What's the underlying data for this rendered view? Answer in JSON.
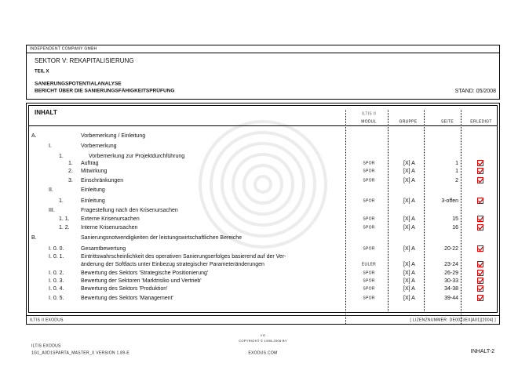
{
  "header": {
    "company": "INDEPENDENT COMPANY GMBH",
    "sektor": "SEKTOR V: REKAPITALISIERUNG",
    "teil": "TEIL X",
    "title": "SANIERUNGSPOTENTIALANALYSE",
    "subtitle": "BERICHT ÜBER DIE SANIERUNGSFÄHIGKEITSPRÜFUNG",
    "stand": "STAND: 05/2008"
  },
  "table": {
    "title": "INHALT",
    "brand": "ILTIS II",
    "columns": [
      "MODUL",
      "GRUPPE",
      "SEITE",
      "ERLEDIGT"
    ],
    "rows": [
      {
        "num": "A.",
        "text": [
          "Vorbemerkung / Einleitung"
        ]
      },
      {
        "num": "I.",
        "text": [
          "Vorbemerkung"
        ]
      },
      {
        "num": "1.",
        "text": [
          "Vorbemerkung zur Projektdurchführung"
        ]
      },
      {
        "num": "1.",
        "text": [
          "Auftrag"
        ],
        "modul": "SPOR",
        "gruppe": "[X] A",
        "seite": "1"
      },
      {
        "num": "2.",
        "text": [
          "Mitwirkung"
        ],
        "modul": "SPOR",
        "gruppe": "[X] A",
        "seite": "1"
      },
      {
        "num": "3.",
        "text": [
          "Einschränkungen"
        ],
        "modul": "SPOR",
        "gruppe": "[X] A",
        "seite": "2"
      },
      {
        "num": "II.",
        "text": [
          "Einleitung"
        ]
      },
      {
        "num": "1.",
        "text": [
          "Einleitung"
        ],
        "modul": "SPOR",
        "gruppe": "[X] A",
        "seite": "3-offen"
      },
      {
        "num": "III.",
        "text": [
          "Fragestellung nach den Krisenursachen"
        ]
      },
      {
        "num": "1. 1.",
        "text": [
          "Externe Krisenursachen"
        ],
        "modul": "SPOR",
        "gruppe": "[X] A",
        "seite": "15"
      },
      {
        "num": "1. 2.",
        "text": [
          "Interne Krisenursachen"
        ],
        "modul": "SPOR",
        "gruppe": "[X] A",
        "seite": "16"
      },
      {
        "num": "B.",
        "text": [
          "Sanierungsnotwendigkeiten der leistungswirtschaftlichen Bereiche"
        ]
      },
      {
        "num": "I. 0. 0.",
        "text": [
          "Gesamtbewertung"
        ],
        "modul": "SPOR",
        "gruppe": "[X] A",
        "seite": "20-22"
      },
      {
        "num": "I. 0. 1.",
        "text": [
          "Eintrittswahrscheinlichkeit des operativen Sanierungserfolges basierend auf der Ver-",
          "änderung der Softfacts unter Einbezug strategischer Parameteränderungen"
        ],
        "modul": "EULER",
        "gruppe": "[X] A",
        "seite": "23-24"
      },
      {
        "num": "I. 0. 2.",
        "text": [
          "Bewertung des Sektors 'Strategische Positionierung'"
        ],
        "modul": "SPOR",
        "gruppe": "[X] A",
        "seite": "26-29"
      },
      {
        "num": "I. 0. 3.",
        "text": [
          "Bewertung der Sektoren 'Marktrisiko und Vertrieb'"
        ],
        "modul": "SPOR",
        "gruppe": "[X] A",
        "seite": "30-33"
      },
      {
        "num": "I. 0. 4.",
        "text": [
          "Bewertung des Sektors 'Produktion'"
        ],
        "modul": "SPOR",
        "gruppe": "[X] A",
        "seite": "34-38"
      },
      {
        "num": "I. 0. 5.",
        "text": [
          "Bewertung des Sektors 'Management'"
        ],
        "modul": "SPOR",
        "gruppe": "[X] A",
        "seite": "39-44"
      }
    ],
    "footer_left": "ILTIS II  EXODUS",
    "footer_right": "[ LIZENZNUMMER: DE0023EX[A01][2004] ]"
  },
  "footer": {
    "left1": "ILTIS  EXODUS",
    "left2": "1G1_A0D1SPARTA_MASTER_X  VERSION 1.89-E",
    "center1": "I/O",
    "center2": "COPYRIGHT © 1998-2008 BY",
    "center3": "EXODUS.COM",
    "page": "INHALT-2"
  }
}
